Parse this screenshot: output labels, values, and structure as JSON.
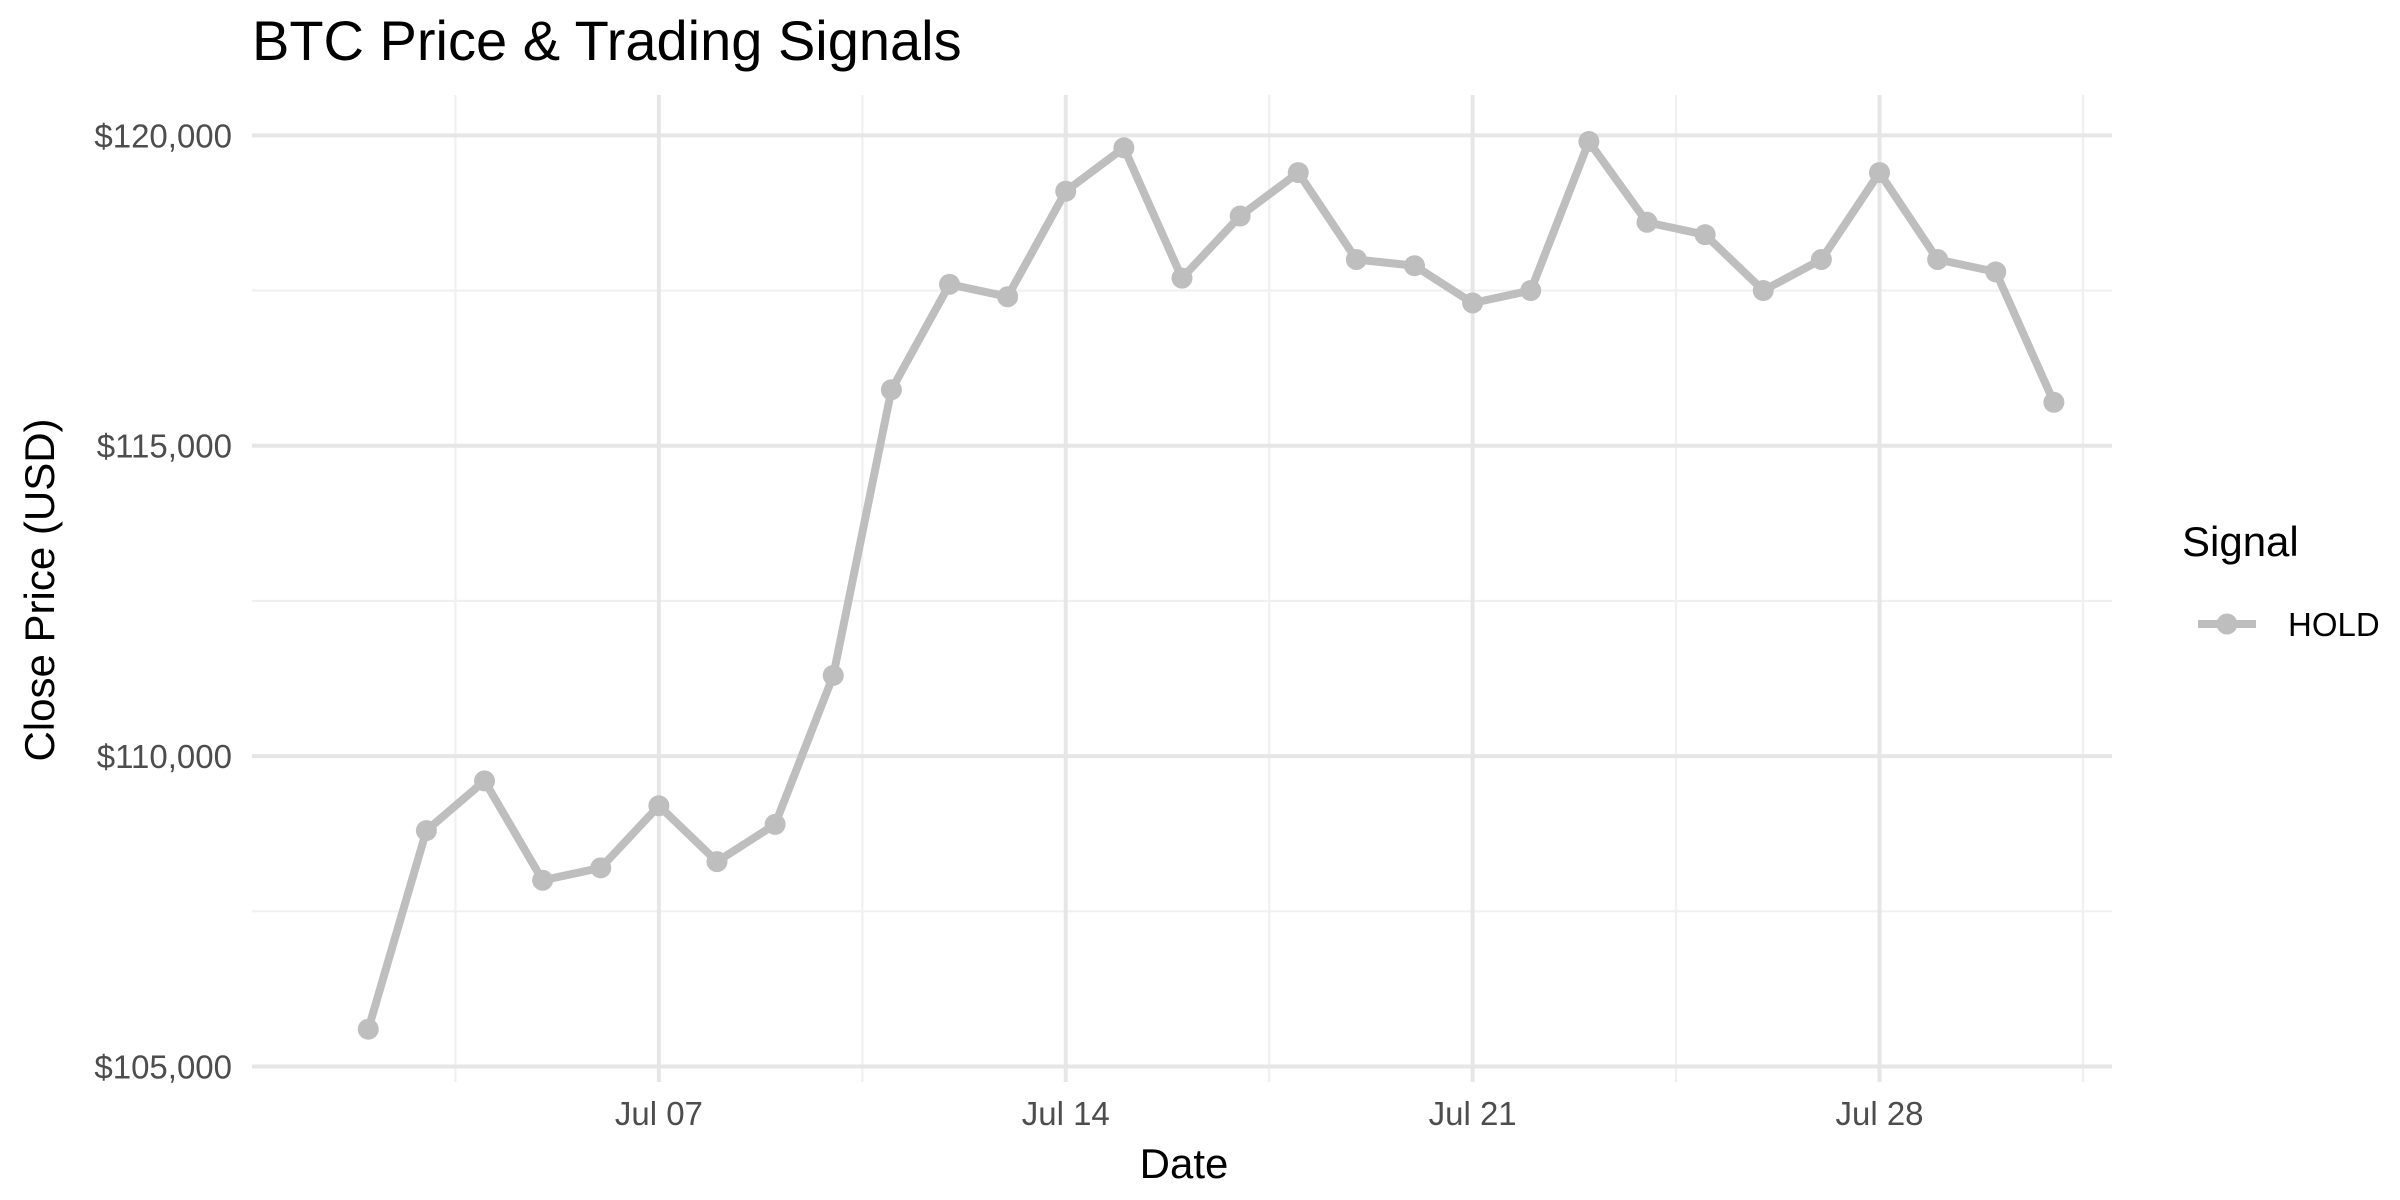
{
  "chart_data": {
    "type": "line",
    "title": "BTC Price & Trading Signals",
    "xlabel": "Date",
    "ylabel": "Close Price (USD)",
    "legend_title": "Signal",
    "legend_position": "right",
    "grid": true,
    "colors": {
      "HOLD": "#bebebe"
    },
    "ylim": [
      104750,
      120650
    ],
    "xlim": [
      "2025-06-30",
      "2025-08-01"
    ],
    "x_ticks": [
      {
        "value": "2025-07-07",
        "label": "Jul 07"
      },
      {
        "value": "2025-07-14",
        "label": "Jul 14"
      },
      {
        "value": "2025-07-21",
        "label": "Jul 21"
      },
      {
        "value": "2025-07-28",
        "label": "Jul 28"
      }
    ],
    "y_ticks": [
      {
        "value": 105000,
        "label": "$105,000"
      },
      {
        "value": 110000,
        "label": "$110,000"
      },
      {
        "value": 115000,
        "label": "$115,000"
      },
      {
        "value": 120000,
        "label": "$120,000"
      }
    ],
    "x": [
      "2025-07-02",
      "2025-07-03",
      "2025-07-04",
      "2025-07-05",
      "2025-07-06",
      "2025-07-07",
      "2025-07-08",
      "2025-07-09",
      "2025-07-10",
      "2025-07-11",
      "2025-07-12",
      "2025-07-13",
      "2025-07-14",
      "2025-07-15",
      "2025-07-16",
      "2025-07-17",
      "2025-07-18",
      "2025-07-19",
      "2025-07-20",
      "2025-07-21",
      "2025-07-22",
      "2025-07-23",
      "2025-07-24",
      "2025-07-25",
      "2025-07-26",
      "2025-07-27",
      "2025-07-28",
      "2025-07-29",
      "2025-07-30",
      "2025-07-31"
    ],
    "series": [
      {
        "name": "HOLD",
        "values": [
          105600,
          108800,
          109600,
          108000,
          108200,
          109200,
          108300,
          108900,
          111300,
          115900,
          117600,
          117400,
          119100,
          119800,
          117700,
          118700,
          119400,
          118000,
          117900,
          117300,
          117500,
          119900,
          118600,
          118400,
          117500,
          118000,
          119400,
          118000,
          117800,
          115700
        ]
      }
    ]
  }
}
